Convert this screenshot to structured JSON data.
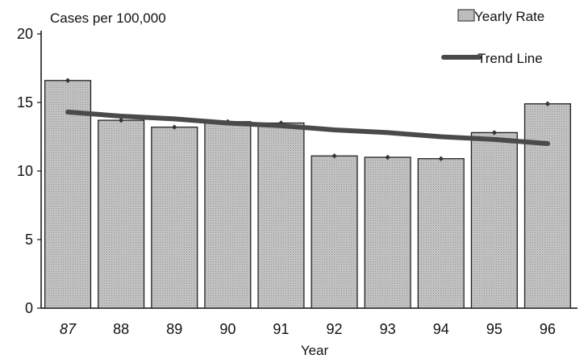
{
  "chart_data": {
    "type": "bar",
    "title": "",
    "ylabel": "Cases per 100,000",
    "xlabel": "Year",
    "categories": [
      "87",
      "88",
      "89",
      "90",
      "91",
      "92",
      "93",
      "94",
      "95",
      "96"
    ],
    "series": [
      {
        "name": "Yearly Rate",
        "type": "bar",
        "values": [
          16.6,
          13.7,
          13.2,
          13.6,
          13.5,
          11.1,
          11.0,
          10.9,
          12.8,
          14.9
        ]
      },
      {
        "name": "Trend Line",
        "type": "line",
        "values": [
          14.3,
          14.0,
          13.8,
          13.5,
          13.3,
          13.0,
          12.8,
          12.5,
          12.3,
          12.0
        ]
      }
    ],
    "ylim": [
      0,
      20
    ],
    "yticks": [
      0,
      5,
      10,
      15,
      20
    ],
    "legend_position": "top-right",
    "grid": false,
    "colors": {
      "bar_fill": "#bdbdbd",
      "bar_stroke": "#222222",
      "trend_line": "#4a4a4a",
      "marker": "#333333"
    }
  }
}
